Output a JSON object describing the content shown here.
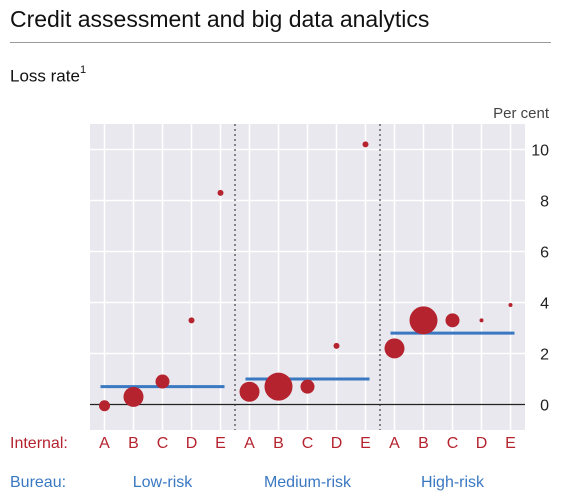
{
  "title": "Credit assessment and big data analytics",
  "subtitle": "Loss rate",
  "subtitle_footnote": "1",
  "colors": {
    "plot_bg": "#e8e8ee",
    "grid": "#ffffff",
    "bubble": "#b5232f",
    "average_line": "#3a78c2",
    "category_red": "#b5232f",
    "category_blue": "#3a78c2",
    "separator": "#444444"
  },
  "chart_data": {
    "type": "scatter",
    "unit_label": "Per cent",
    "ylim": [
      -1,
      11
    ],
    "yticks": [
      0,
      2,
      4,
      6,
      8,
      10
    ],
    "internal_row_label": "Internal:",
    "bureau_row_label": "Bureau:",
    "groups": [
      {
        "bureau": "Low-risk",
        "average": 0.7,
        "points": [
          {
            "internal": "A",
            "value": -0.05,
            "size": "small"
          },
          {
            "internal": "B",
            "value": 0.3,
            "size": "large"
          },
          {
            "internal": "C",
            "value": 0.9,
            "size": "medium"
          },
          {
            "internal": "D",
            "value": 3.3,
            "size": "tiny"
          },
          {
            "internal": "E",
            "value": 8.3,
            "size": "tiny"
          }
        ]
      },
      {
        "bureau": "Medium-risk",
        "average": 1.0,
        "points": [
          {
            "internal": "A",
            "value": 0.5,
            "size": "large"
          },
          {
            "internal": "B",
            "value": 0.7,
            "size": "xlarge"
          },
          {
            "internal": "C",
            "value": 0.7,
            "size": "medium"
          },
          {
            "internal": "D",
            "value": 2.3,
            "size": "tiny"
          },
          {
            "internal": "E",
            "value": 10.2,
            "size": "tiny"
          }
        ]
      },
      {
        "bureau": "High-risk",
        "average": 2.8,
        "points": [
          {
            "internal": "A",
            "value": 2.2,
            "size": "large"
          },
          {
            "internal": "B",
            "value": 3.3,
            "size": "xlarge"
          },
          {
            "internal": "C",
            "value": 3.3,
            "size": "medium"
          },
          {
            "internal": "D",
            "value": 3.3,
            "size": "micro"
          },
          {
            "internal": "E",
            "value": 3.9,
            "size": "micro"
          }
        ]
      }
    ]
  }
}
